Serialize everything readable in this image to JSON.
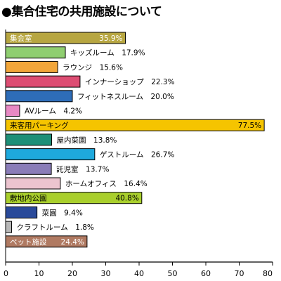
{
  "chart_data": {
    "type": "bar",
    "orientation": "horizontal",
    "title": "●集合住宅の共用施設について",
    "xlim": [
      0,
      80
    ],
    "xticks": [
      0,
      10,
      20,
      30,
      40,
      50,
      60,
      70,
      80
    ],
    "grid": false,
    "legend": "none",
    "bars": [
      {
        "label": "集会室",
        "value": 35.9,
        "display": "35.9%",
        "color": "#b7a641",
        "label_inside": true,
        "label_dark": false
      },
      {
        "label": "キッズルーム",
        "value": 17.9,
        "display": "17.9%",
        "color": "#8fce70",
        "label_inside": false
      },
      {
        "label": "ラウンジ",
        "value": 15.6,
        "display": "15.6%",
        "color": "#f2a63a",
        "label_inside": false
      },
      {
        "label": "インナーショップ",
        "value": 22.3,
        "display": "22.3%",
        "color": "#dd4d73",
        "label_inside": false
      },
      {
        "label": "フィットネスルーム",
        "value": 20.0,
        "display": "20.0%",
        "color": "#2e6db8",
        "label_inside": false
      },
      {
        "label": "AVルーム",
        "value": 4.2,
        "display": "4.2%",
        "color": "#e889c4",
        "label_inside": false
      },
      {
        "label": "来客用パーキング",
        "value": 77.5,
        "display": "77.5%",
        "color": "#f5c400",
        "label_inside": true,
        "label_dark": true
      },
      {
        "label": "屋内菜園",
        "value": 13.8,
        "display": "13.8%",
        "color": "#1e8f77",
        "label_inside": false
      },
      {
        "label": "ゲストルーム",
        "value": 26.7,
        "display": "26.7%",
        "color": "#1ea9dd",
        "label_inside": false
      },
      {
        "label": "託児室",
        "value": 13.7,
        "display": "13.7%",
        "color": "#8a7db8",
        "label_inside": false
      },
      {
        "label": "ホームオフィス",
        "value": 16.4,
        "display": "16.4%",
        "color": "#ecc4cf",
        "label_inside": false
      },
      {
        "label": "敷地内公園",
        "value": 40.8,
        "display": "40.8%",
        "color": "#a9cf2c",
        "label_inside": true,
        "label_dark": true
      },
      {
        "label": "菜園",
        "value": 9.4,
        "display": "9.4%",
        "color": "#2a4a9a",
        "label_inside": false
      },
      {
        "label": "クラフトルーム",
        "value": 1.8,
        "display": "1.8%",
        "color": "#b8b8b8",
        "label_inside": false
      },
      {
        "label": "ペット施設",
        "value": 24.4,
        "display": "24.4%",
        "color": "#b07a62",
        "label_inside": true,
        "label_dark": false
      }
    ]
  }
}
